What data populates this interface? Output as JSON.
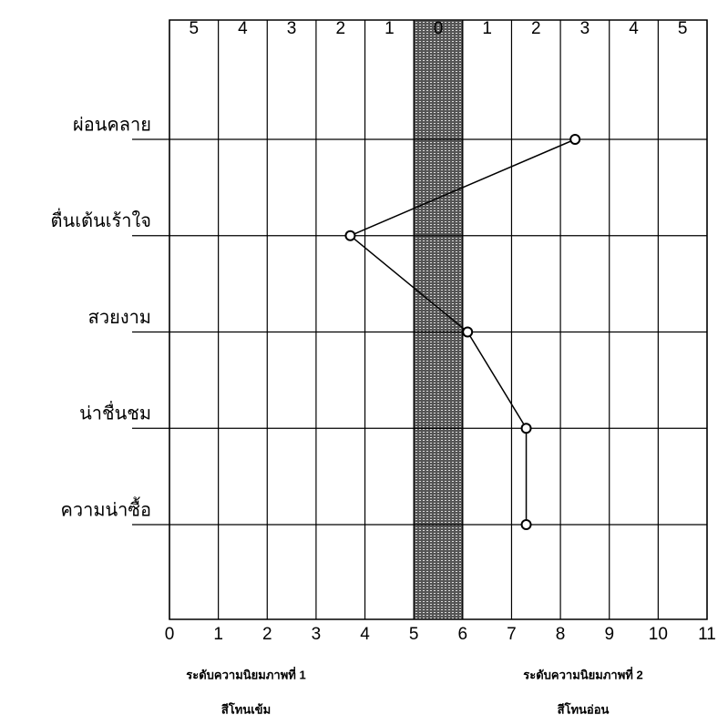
{
  "chart_data": {
    "type": "line",
    "categories": [
      "ผ่อนคลาย",
      "ตื่นเต้นเร้าใจ",
      "สวยงาม",
      "น่าชื่นชม",
      "ความน่าซื้อ"
    ],
    "values": [
      8.3,
      3.7,
      6.1,
      7.3,
      7.3
    ],
    "color": "#000000",
    "xlim": [
      0,
      11
    ],
    "xticks": [
      0,
      1,
      2,
      3,
      4,
      5,
      6,
      7,
      8,
      9,
      10,
      11
    ],
    "column_labels": [
      "5",
      "4",
      "3",
      "2",
      "1",
      "0",
      "1",
      "2",
      "3",
      "4",
      "5"
    ],
    "band": [
      5,
      6
    ],
    "grid": true,
    "group_labels": [
      [
        "ระดับความนิยมภาพที่ 1",
        "สีโทนเข้ม"
      ],
      [
        "ระดับความนิยมภาพที่ 2",
        "สีโทนอ่อน"
      ]
    ]
  }
}
